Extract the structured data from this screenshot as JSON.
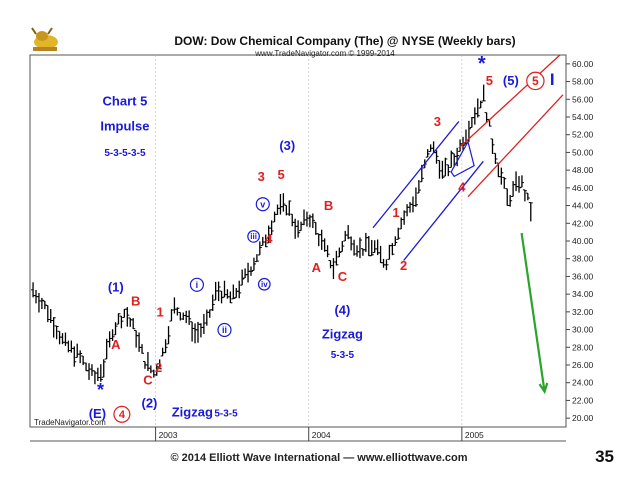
{
  "slide": {
    "title": "DOW:  Dow Chemical Company (The) @ NYSE  (Weekly bars)",
    "subtitle": "www.TradeNavigator.com © 1999-2014",
    "watermark": "TradeNavigator.com",
    "footer": "© 2014 Elliott Wave International — www.elliottwave.com",
    "page_number": "35"
  },
  "chart_data": {
    "type": "bar",
    "subtype": "weekly-ohlc",
    "x_unit": "year",
    "xlim": [
      2002.18,
      2005.68
    ],
    "ylim": [
      19,
      61
    ],
    "y_ticks": [
      20,
      22,
      24,
      26,
      28,
      30,
      32,
      34,
      36,
      38,
      40,
      42,
      44,
      46,
      48,
      50,
      52,
      54,
      56,
      58,
      60
    ],
    "y_tick_labels": [
      "20.00",
      "22.00",
      "24.00",
      "26.00",
      "28.00",
      "30.00",
      "32.00",
      "34.00",
      "36.00",
      "38.00",
      "40.00",
      "42.00",
      "44.00",
      "46.00",
      "48.00",
      "50.00",
      "52.00",
      "54.00",
      "56.00",
      "58.00",
      "60.00"
    ],
    "x_ticks": [
      {
        "x": 2003.0,
        "label": "2003"
      },
      {
        "x": 2004.0,
        "label": "2004"
      },
      {
        "x": 2005.0,
        "label": "2005"
      }
    ],
    "price_path": [
      [
        2002.2,
        34.5
      ],
      [
        2002.3,
        32.0
      ],
      [
        2002.4,
        28.5
      ],
      [
        2002.5,
        27.0
      ],
      [
        2002.6,
        24.5
      ],
      [
        2002.66,
        25.8
      ],
      [
        2002.72,
        30.0
      ],
      [
        2002.8,
        32.0
      ],
      [
        2002.86,
        30.0
      ],
      [
        2002.93,
        26.5
      ],
      [
        2002.99,
        25.0
      ],
      [
        2003.05,
        27.5
      ],
      [
        2003.12,
        32.5
      ],
      [
        2003.2,
        31.5
      ],
      [
        2003.26,
        29.5
      ],
      [
        2003.33,
        30.5
      ],
      [
        2003.4,
        34.5
      ],
      [
        2003.5,
        33.5
      ],
      [
        2003.62,
        37.0
      ],
      [
        2003.7,
        39.5
      ],
      [
        2003.79,
        43.5
      ],
      [
        2003.86,
        44.0
      ],
      [
        2003.93,
        41.0
      ],
      [
        2004.0,
        43.0
      ],
      [
        2004.08,
        40.0
      ],
      [
        2004.16,
        37.0
      ],
      [
        2004.25,
        41.0
      ],
      [
        2004.33,
        39.0
      ],
      [
        2004.42,
        39.5
      ],
      [
        2004.5,
        37.5
      ],
      [
        2004.6,
        42.0
      ],
      [
        2004.7,
        45.0
      ],
      [
        2004.8,
        51.0
      ],
      [
        2004.88,
        47.5
      ],
      [
        2004.96,
        49.5
      ],
      [
        2005.02,
        52.0
      ],
      [
        2005.1,
        55.0
      ],
      [
        2005.14,
        56.5
      ],
      [
        2005.2,
        51.0
      ],
      [
        2005.3,
        44.5
      ],
      [
        2005.38,
        47.0
      ],
      [
        2005.45,
        43.5
      ]
    ],
    "channels": [
      {
        "color": "#1a1ad8",
        "lines": [
          [
            2004.42,
            41.5,
            2004.98,
            53.5
          ],
          [
            2004.62,
            37.8,
            2005.14,
            49.0
          ]
        ]
      },
      {
        "color": "#e02020",
        "lines": [
          [
            2004.98,
            50.5,
            2005.64,
            61.0
          ],
          [
            2005.04,
            45.0,
            2005.66,
            56.5
          ]
        ]
      }
    ],
    "triangle": [
      [
        2004.93,
        47.8
      ],
      [
        2005.04,
        51.2
      ],
      [
        2005.08,
        48.5
      ],
      [
        2004.95,
        47.3
      ]
    ],
    "projection": {
      "color": "#2aa52a",
      "from": [
        2005.39,
        40.9
      ],
      "to": [
        2005.54,
        23.0
      ]
    },
    "annotations": [
      {
        "text": "Chart 5",
        "x": 2002.8,
        "y": 55.3,
        "color": "#1a1ad8",
        "size": 13
      },
      {
        "text": "Impulse",
        "x": 2002.8,
        "y": 52.5,
        "color": "#1a1ad8",
        "size": 13
      },
      {
        "text": "5-3-5-3-5",
        "x": 2002.8,
        "y": 49.6,
        "color": "#1a1ad8",
        "size": 10
      },
      {
        "text": "*",
        "x": 2002.64,
        "y": 22.5,
        "color": "#1a1ad8",
        "size": 18
      },
      {
        "text": "(E)",
        "x": 2002.62,
        "y": 20.0,
        "color": "#1a1ad8",
        "size": 13
      },
      {
        "text": "4",
        "x": 2002.78,
        "y": 20.0,
        "color": "#e02020",
        "size": 11,
        "ring": "#e02020"
      },
      {
        "text": "(1)",
        "x": 2002.74,
        "y": 34.3,
        "color": "#1a1ad8",
        "size": 13
      },
      {
        "text": "A",
        "x": 2002.74,
        "y": 27.8,
        "color": "#e02020",
        "size": 13
      },
      {
        "text": "B",
        "x": 2002.87,
        "y": 32.7,
        "color": "#e02020",
        "size": 13
      },
      {
        "text": "1",
        "x": 2003.03,
        "y": 31.5,
        "color": "#e02020",
        "size": 13
      },
      {
        "text": "C",
        "x": 2002.95,
        "y": 23.8,
        "color": "#e02020",
        "size": 13
      },
      {
        "text": "2",
        "x": 2003.02,
        "y": 25.2,
        "color": "#e02020",
        "size": 13
      },
      {
        "text": "(2)",
        "x": 2002.96,
        "y": 21.2,
        "color": "#1a1ad8",
        "size": 13
      },
      {
        "text": "Zigzag",
        "x": 2003.24,
        "y": 20.2,
        "color": "#1a1ad8",
        "size": 13
      },
      {
        "text": "5-3-5",
        "x": 2003.46,
        "y": 20.2,
        "color": "#1a1ad8",
        "size": 10
      },
      {
        "text": "i",
        "x": 2003.27,
        "y": 34.7,
        "color": "#1a1ad8",
        "size": 9,
        "ring": "#1a1ad8"
      },
      {
        "text": "ii",
        "x": 2003.45,
        "y": 29.6,
        "color": "#1a1ad8",
        "size": 9,
        "ring": "#1a1ad8"
      },
      {
        "text": "iii",
        "x": 2003.64,
        "y": 40.2,
        "color": "#1a1ad8",
        "size": 8,
        "ring": "#1a1ad8"
      },
      {
        "text": "iv",
        "x": 2003.71,
        "y": 34.8,
        "color": "#1a1ad8",
        "size": 8,
        "ring": "#1a1ad8"
      },
      {
        "text": "v",
        "x": 2003.7,
        "y": 43.8,
        "color": "#1a1ad8",
        "size": 9,
        "ring": "#1a1ad8"
      },
      {
        "text": "3",
        "x": 2003.69,
        "y": 46.8,
        "color": "#e02020",
        "size": 13
      },
      {
        "text": "5",
        "x": 2003.82,
        "y": 47.0,
        "color": "#e02020",
        "size": 13
      },
      {
        "text": "(3)",
        "x": 2003.86,
        "y": 50.3,
        "color": "#1a1ad8",
        "size": 13
      },
      {
        "text": "4",
        "x": 2003.74,
        "y": 39.8,
        "color": "#e02020",
        "size": 13
      },
      {
        "text": "B",
        "x": 2004.13,
        "y": 43.5,
        "color": "#e02020",
        "size": 13
      },
      {
        "text": "A",
        "x": 2004.05,
        "y": 36.5,
        "color": "#e02020",
        "size": 13
      },
      {
        "text": "C",
        "x": 2004.22,
        "y": 35.5,
        "color": "#e02020",
        "size": 13
      },
      {
        "text": "(4)",
        "x": 2004.22,
        "y": 31.7,
        "color": "#1a1ad8",
        "size": 13
      },
      {
        "text": "Zigzag",
        "x": 2004.22,
        "y": 29.0,
        "color": "#1a1ad8",
        "size": 13
      },
      {
        "text": "5-3-5",
        "x": 2004.22,
        "y": 26.8,
        "color": "#1a1ad8",
        "size": 10
      },
      {
        "text": "1",
        "x": 2004.57,
        "y": 42.7,
        "color": "#e02020",
        "size": 13
      },
      {
        "text": "2",
        "x": 2004.62,
        "y": 36.7,
        "color": "#e02020",
        "size": 13
      },
      {
        "text": "3",
        "x": 2004.84,
        "y": 53.0,
        "color": "#e02020",
        "size": 13
      },
      {
        "text": "4",
        "x": 2005.0,
        "y": 45.6,
        "color": "#e02020",
        "size": 13
      },
      {
        "text": "5",
        "x": 2005.18,
        "y": 57.6,
        "color": "#e02020",
        "size": 13
      },
      {
        "text": "*",
        "x": 2005.13,
        "y": 59.3,
        "color": "#1a1ad8",
        "size": 20
      },
      {
        "text": "(5)",
        "x": 2005.32,
        "y": 57.6,
        "color": "#1a1ad8",
        "size": 13
      },
      {
        "text": "5",
        "x": 2005.48,
        "y": 57.6,
        "color": "#e02020",
        "size": 12,
        "ring": "#e02020"
      },
      {
        "text": "I",
        "x": 2005.59,
        "y": 57.6,
        "color": "#1a1ad8",
        "size": 17
      }
    ]
  }
}
